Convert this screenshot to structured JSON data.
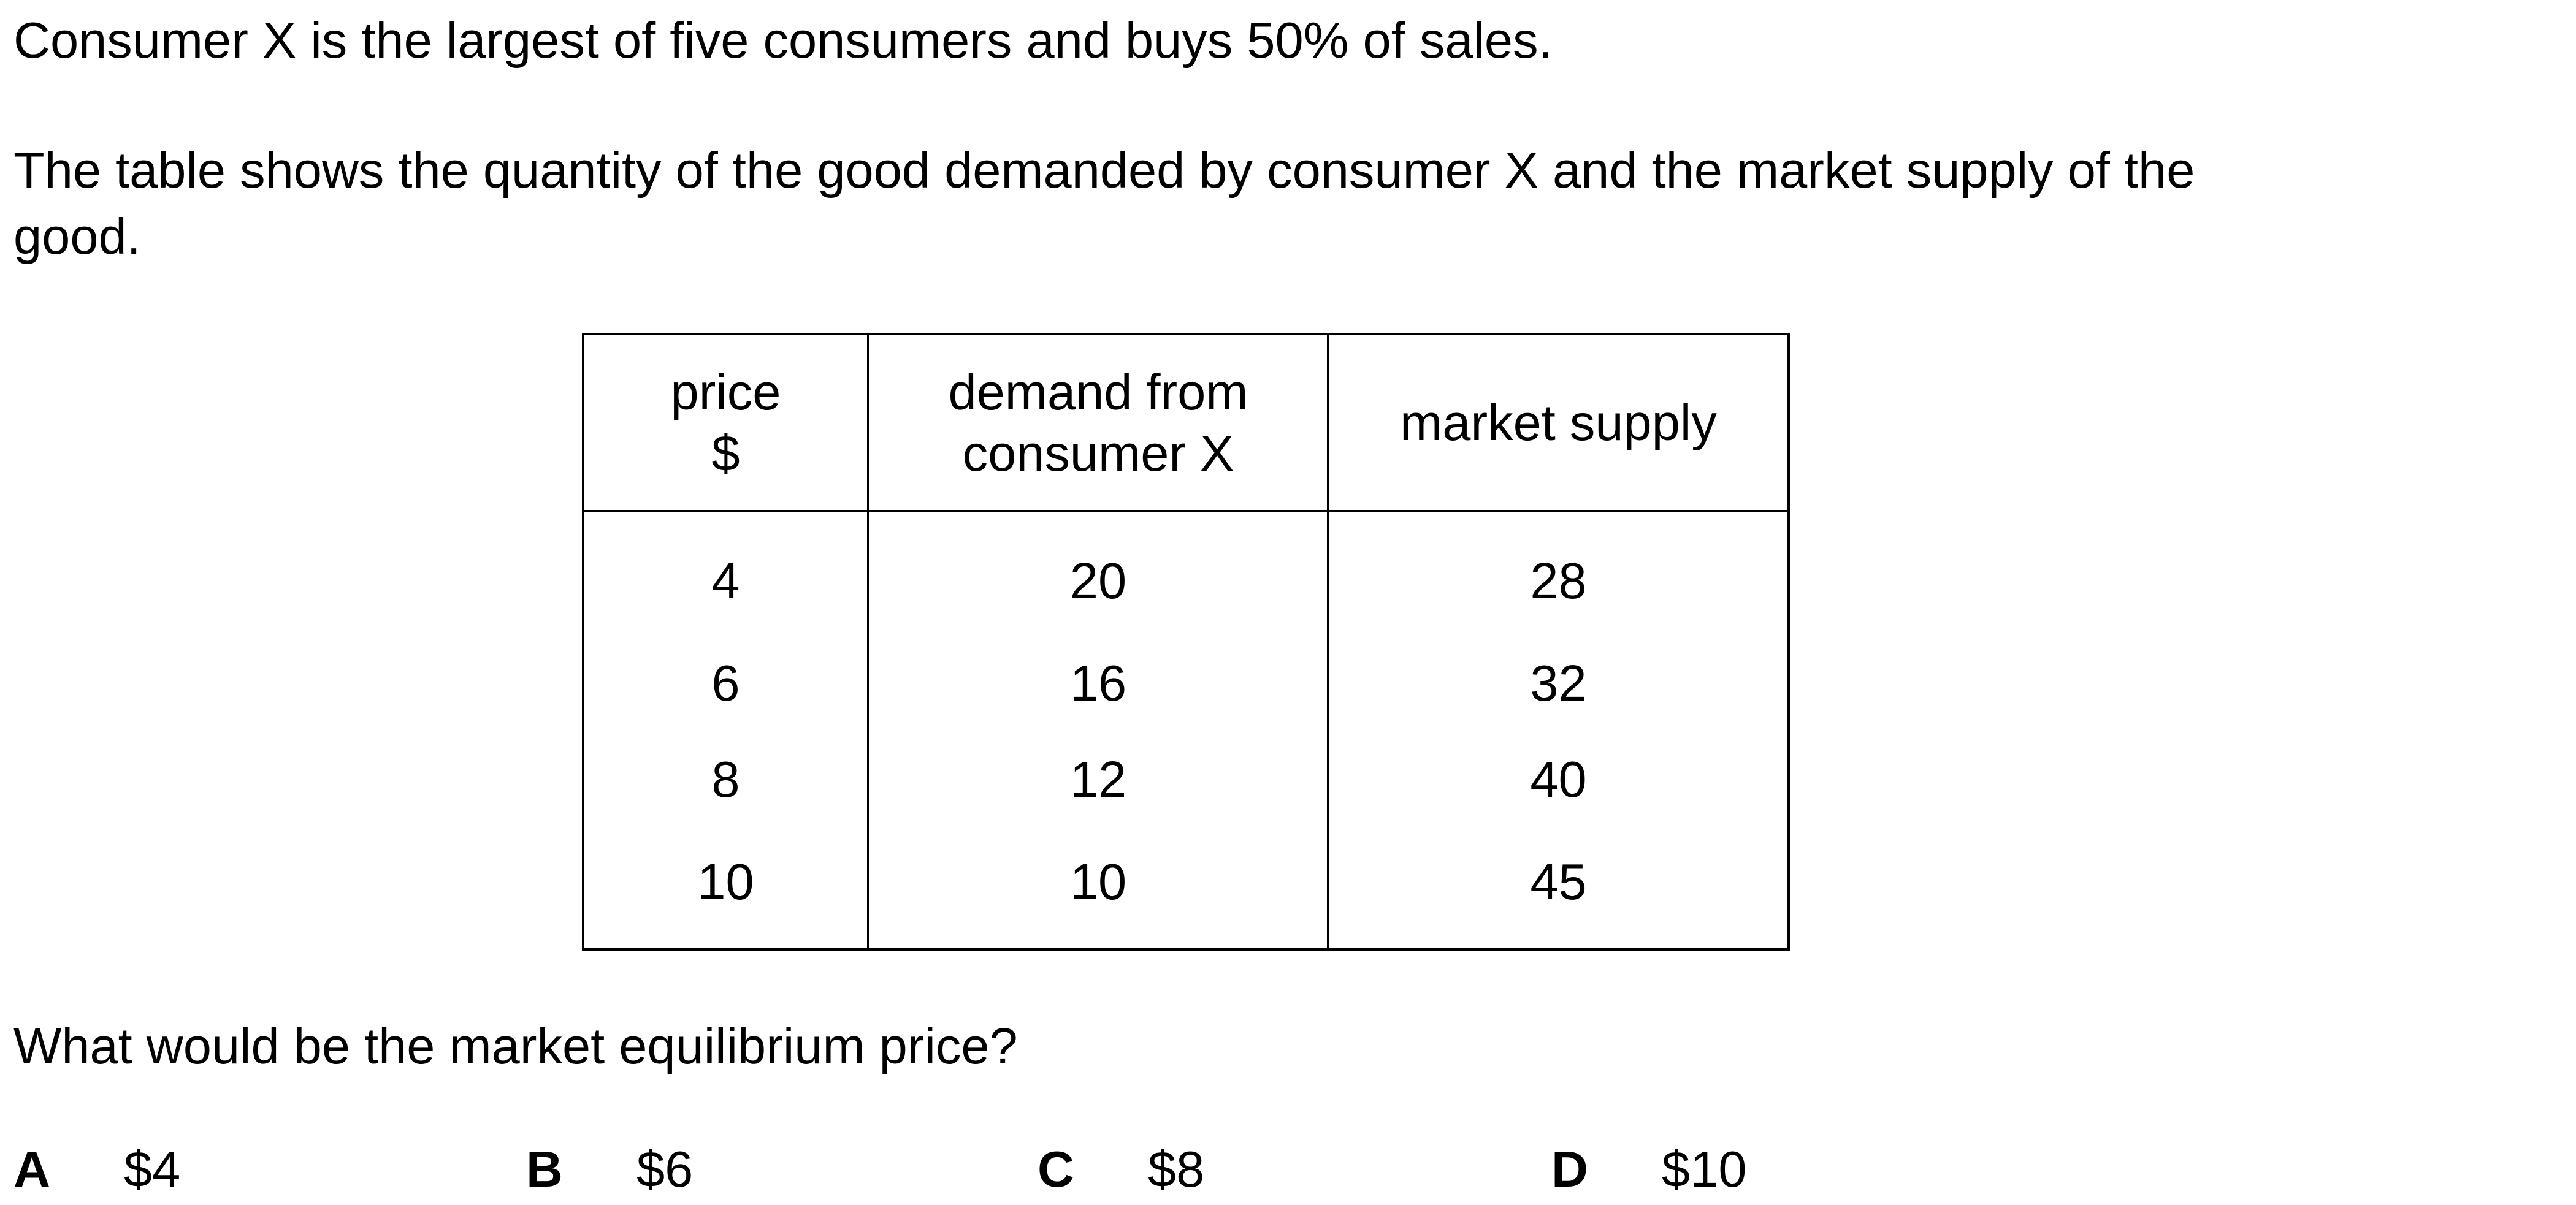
{
  "intro": {
    "line1": "Consumer X is the largest of five consumers and buys 50% of sales.",
    "line2a": "The table shows the quantity of the good demanded by consumer X and the market supply of the",
    "line2b": "good."
  },
  "table": {
    "headers": {
      "price_line1": "price",
      "price_line2": "$",
      "demand_line1": "demand from",
      "demand_line2": "consumer X",
      "supply": "market supply"
    },
    "rows": [
      {
        "price": "4",
        "demand": "20",
        "supply": "28"
      },
      {
        "price": "6",
        "demand": "16",
        "supply": "32"
      },
      {
        "price": "8",
        "demand": "12",
        "supply": "40"
      },
      {
        "price": "10",
        "demand": "10",
        "supply": "45"
      }
    ]
  },
  "question": "What would be the market equilibrium price?",
  "options": [
    {
      "letter": "A",
      "value": "$4"
    },
    {
      "letter": "B",
      "value": "$6"
    },
    {
      "letter": "C",
      "value": "$8"
    },
    {
      "letter": "D",
      "value": "$10"
    }
  ]
}
